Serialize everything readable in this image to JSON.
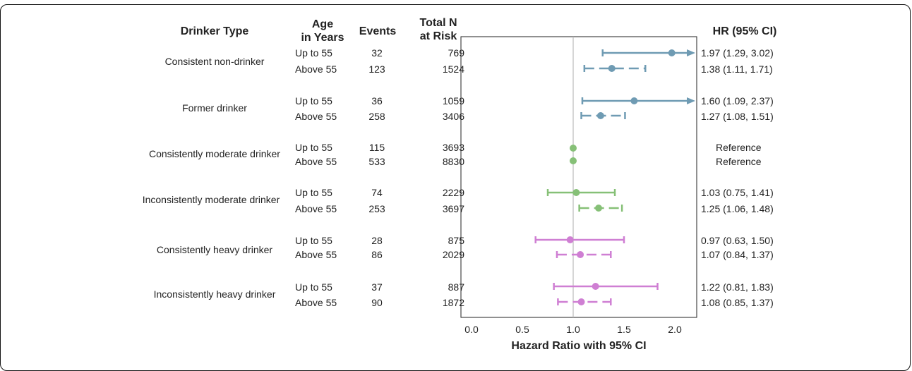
{
  "headers": {
    "drinker_type": "Drinker Type",
    "age_line1": "Age",
    "age_line2": "in Years",
    "events": "Events",
    "total_line1": "Total N",
    "total_line2": "at Risk",
    "hr": "HR (95% CI)"
  },
  "groups": [
    "Consistent non-drinker",
    "Former drinker",
    "Consistently moderate drinker",
    "Inconsistently moderate drinker",
    "Consistently heavy drinker",
    "Inconsistently heavy drinker"
  ],
  "rows": [
    {
      "age": "Up to 55",
      "events": "32",
      "total": "769",
      "hr_text": "1.97 (1.29, 3.02)"
    },
    {
      "age": "Above 55",
      "events": "123",
      "total": "1524",
      "hr_text": "1.38 (1.11, 1.71)"
    },
    {
      "age": "Up to 55",
      "events": "36",
      "total": "1059",
      "hr_text": "1.60 (1.09, 2.37)"
    },
    {
      "age": "Above 55",
      "events": "258",
      "total": "3406",
      "hr_text": "1.27 (1.08, 1.51)"
    },
    {
      "age": "Up to 55",
      "events": "115",
      "total": "3693",
      "hr_text": "Reference"
    },
    {
      "age": "Above 55",
      "events": "533",
      "total": "8830",
      "hr_text": "Reference"
    },
    {
      "age": "Up to 55",
      "events": "74",
      "total": "2229",
      "hr_text": "1.03 (0.75, 1.41)"
    },
    {
      "age": "Above 55",
      "events": "253",
      "total": "3697",
      "hr_text": "1.25 (1.06, 1.48)"
    },
    {
      "age": "Up to 55",
      "events": "28",
      "total": "875",
      "hr_text": "0.97 (0.63, 1.50)"
    },
    {
      "age": "Above 55",
      "events": "86",
      "total": "2029",
      "hr_text": "1.07 (0.84, 1.37)"
    },
    {
      "age": "Up to 55",
      "events": "37",
      "total": "887",
      "hr_text": "1.22 (0.81, 1.83)"
    },
    {
      "age": "Above 55",
      "events": "90",
      "total": "1872",
      "hr_text": "1.08 (0.85, 1.37)"
    }
  ],
  "chart_data": {
    "type": "forest",
    "xlabel": "Hazard Ratio with 95% CI",
    "xlim": [
      -0.1,
      2.2
    ],
    "xticks": [
      0.0,
      0.5,
      1.0,
      1.5,
      2.0
    ],
    "xtick_labels": [
      "0.0",
      "0.5",
      "1.0",
      "1.5",
      "2.0"
    ],
    "reference_line": 1.0,
    "colors": {
      "non_drinker": "#6f9bb3",
      "moderate": "#86c077",
      "heavy": "#cf7fd3",
      "refline": "#bbbbbb"
    },
    "points": [
      {
        "group": "Consistent non-drinker",
        "age": "Up to 55",
        "hr": 1.97,
        "lo": 1.29,
        "hi": 3.02,
        "color_key": "non_drinker",
        "dashed": false,
        "clipped_right": true
      },
      {
        "group": "Consistent non-drinker",
        "age": "Above 55",
        "hr": 1.38,
        "lo": 1.11,
        "hi": 1.71,
        "color_key": "non_drinker",
        "dashed": true,
        "clipped_right": false
      },
      {
        "group": "Former drinker",
        "age": "Up to 55",
        "hr": 1.6,
        "lo": 1.09,
        "hi": 2.37,
        "color_key": "non_drinker",
        "dashed": false,
        "clipped_right": true
      },
      {
        "group": "Former drinker",
        "age": "Above 55",
        "hr": 1.27,
        "lo": 1.08,
        "hi": 1.51,
        "color_key": "non_drinker",
        "dashed": true,
        "clipped_right": false
      },
      {
        "group": "Consistently moderate drinker",
        "age": "Up to 55",
        "hr": 1.0,
        "lo": 1.0,
        "hi": 1.0,
        "color_key": "moderate",
        "dashed": false,
        "clipped_right": false
      },
      {
        "group": "Consistently moderate drinker",
        "age": "Above 55",
        "hr": 1.0,
        "lo": 1.0,
        "hi": 1.0,
        "color_key": "moderate",
        "dashed": false,
        "clipped_right": false
      },
      {
        "group": "Inconsistently moderate drinker",
        "age": "Up to 55",
        "hr": 1.03,
        "lo": 0.75,
        "hi": 1.41,
        "color_key": "moderate",
        "dashed": false,
        "clipped_right": false
      },
      {
        "group": "Inconsistently moderate drinker",
        "age": "Above 55",
        "hr": 1.25,
        "lo": 1.06,
        "hi": 1.48,
        "color_key": "moderate",
        "dashed": true,
        "clipped_right": false
      },
      {
        "group": "Consistently heavy drinker",
        "age": "Up to 55",
        "hr": 0.97,
        "lo": 0.63,
        "hi": 1.5,
        "color_key": "heavy",
        "dashed": false,
        "clipped_right": false
      },
      {
        "group": "Consistently heavy drinker",
        "age": "Above 55",
        "hr": 1.07,
        "lo": 0.84,
        "hi": 1.37,
        "color_key": "heavy",
        "dashed": true,
        "clipped_right": false
      },
      {
        "group": "Inconsistently heavy drinker",
        "age": "Up to 55",
        "hr": 1.22,
        "lo": 0.81,
        "hi": 1.83,
        "color_key": "heavy",
        "dashed": false,
        "clipped_right": false
      },
      {
        "group": "Inconsistently heavy drinker",
        "age": "Above 55",
        "hr": 1.08,
        "lo": 0.85,
        "hi": 1.37,
        "color_key": "heavy",
        "dashed": true,
        "clipped_right": false
      }
    ]
  }
}
